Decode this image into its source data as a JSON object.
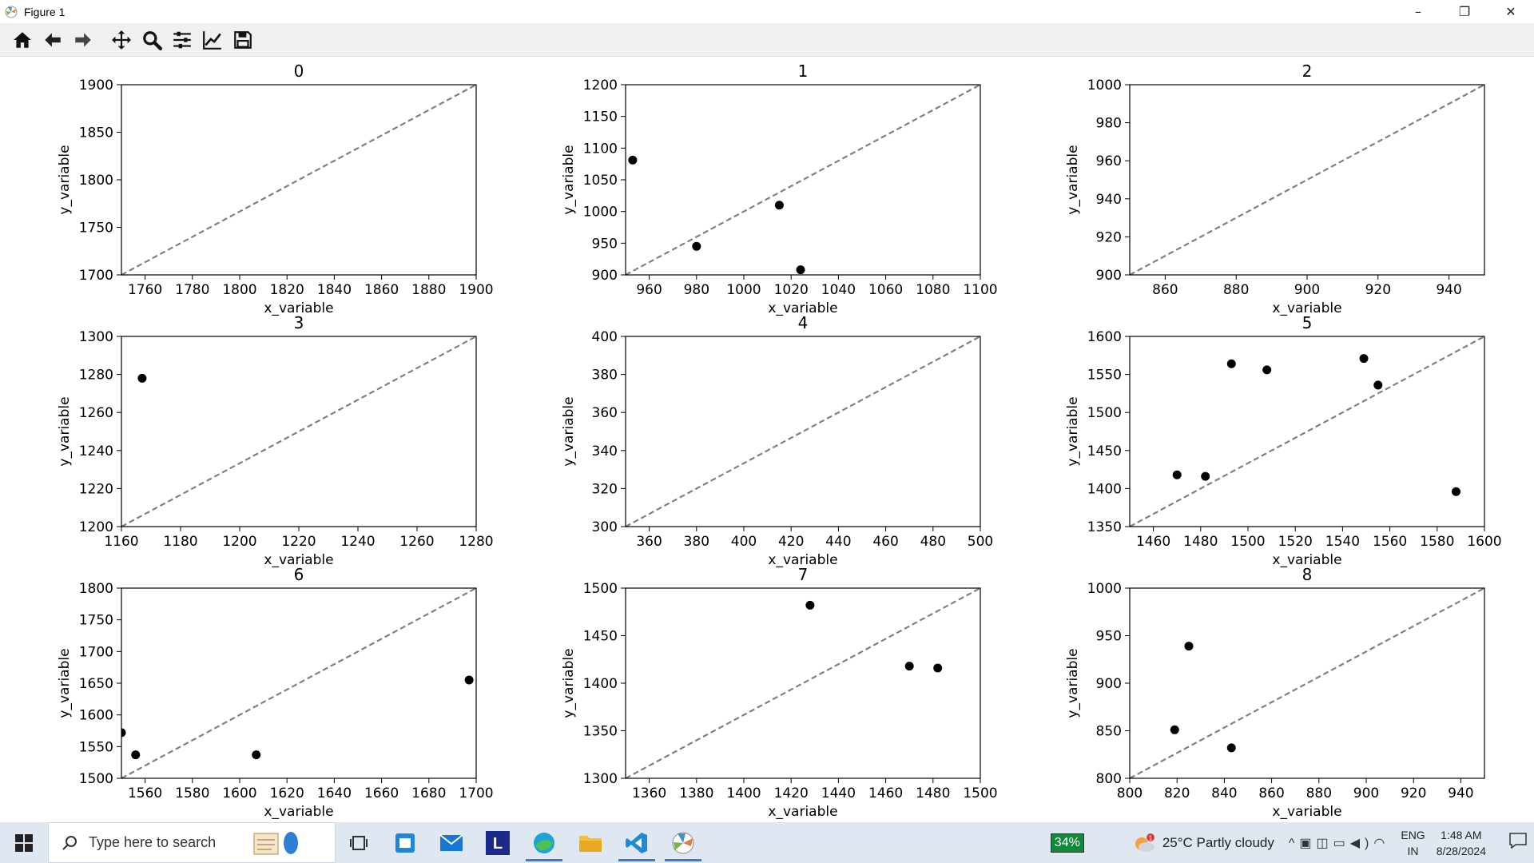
{
  "window": {
    "title": "Figure 1",
    "controls": {
      "minimize": "–",
      "restore": "❐",
      "close": "✕"
    }
  },
  "toolbar": {
    "tools": [
      "home-icon",
      "back-icon",
      "forward-icon",
      "pan-icon",
      "zoom-icon",
      "configure-subplots-icon",
      "edit-axis-icon",
      "save-icon"
    ]
  },
  "colors": {
    "dashed_line": "#808080",
    "point": "#000000",
    "axis": "#000000"
  },
  "chart_data": [
    {
      "type": "scatter",
      "title": "0",
      "xlabel": "x_variable",
      "ylabel": "y_variable",
      "xlim": [
        1750,
        1900
      ],
      "ylim": [
        1700,
        1900
      ],
      "xticks": [
        1760,
        1780,
        1800,
        1820,
        1840,
        1860,
        1880,
        1900
      ],
      "yticks": [
        1700,
        1750,
        1800,
        1850,
        1900
      ],
      "x": [],
      "y": []
    },
    {
      "type": "scatter",
      "title": "1",
      "xlabel": "x_variable",
      "ylabel": "y_variable",
      "xlim": [
        950,
        1100
      ],
      "ylim": [
        900,
        1200
      ],
      "xticks": [
        960,
        980,
        1000,
        1020,
        1040,
        1060,
        1080,
        1100
      ],
      "yticks": [
        900,
        950,
        1000,
        1050,
        1100,
        1150,
        1200
      ],
      "x": [
        953,
        980,
        1015,
        1024
      ],
      "y": [
        1081,
        945,
        1010,
        908
      ]
    },
    {
      "type": "scatter",
      "title": "2",
      "xlabel": "x_variable",
      "ylabel": "y_variable",
      "xlim": [
        850,
        950
      ],
      "ylim": [
        900,
        1000
      ],
      "xticks": [
        860,
        880,
        900,
        920,
        940
      ],
      "yticks": [
        900,
        920,
        940,
        960,
        980,
        1000
      ],
      "x": [],
      "y": []
    },
    {
      "type": "scatter",
      "title": "3",
      "xlabel": "x_variable",
      "ylabel": "y_variable",
      "xlim": [
        1160,
        1280
      ],
      "ylim": [
        1200,
        1300
      ],
      "xticks": [
        1160,
        1180,
        1200,
        1220,
        1240,
        1260,
        1280
      ],
      "yticks": [
        1200,
        1220,
        1240,
        1260,
        1280,
        1300
      ],
      "x": [
        1167
      ],
      "y": [
        1278
      ]
    },
    {
      "type": "scatter",
      "title": "4",
      "xlabel": "x_variable",
      "ylabel": "y_variable",
      "xlim": [
        350,
        500
      ],
      "ylim": [
        300,
        400
      ],
      "xticks": [
        360,
        380,
        400,
        420,
        440,
        460,
        480,
        500
      ],
      "yticks": [
        300,
        320,
        340,
        360,
        380,
        400
      ],
      "x": [],
      "y": []
    },
    {
      "type": "scatter",
      "title": "5",
      "xlabel": "x_variable",
      "ylabel": "y_variable",
      "xlim": [
        1450,
        1600
      ],
      "ylim": [
        1350,
        1600
      ],
      "xticks": [
        1460,
        1480,
        1500,
        1520,
        1540,
        1560,
        1580,
        1600
      ],
      "yticks": [
        1350,
        1400,
        1450,
        1500,
        1550,
        1600
      ],
      "x": [
        1470,
        1482,
        1493,
        1508,
        1549,
        1555,
        1588
      ],
      "y": [
        1418,
        1416,
        1564,
        1556,
        1571,
        1536,
        1396
      ]
    },
    {
      "type": "scatter",
      "title": "6",
      "xlabel": "x_variable",
      "ylabel": "y_variable",
      "xlim": [
        1550,
        1700
      ],
      "ylim": [
        1500,
        1800
      ],
      "xticks": [
        1560,
        1580,
        1600,
        1620,
        1640,
        1660,
        1680,
        1700
      ],
      "yticks": [
        1500,
        1550,
        1600,
        1650,
        1700,
        1750,
        1800
      ],
      "x": [
        1550,
        1556,
        1607,
        1697
      ],
      "y": [
        1572,
        1537,
        1537,
        1655
      ]
    },
    {
      "type": "scatter",
      "title": "7",
      "xlabel": "x_variable",
      "ylabel": "y_variable",
      "xlim": [
        1350,
        1500
      ],
      "ylim": [
        1300,
        1500
      ],
      "xticks": [
        1360,
        1380,
        1400,
        1420,
        1440,
        1460,
        1480,
        1500
      ],
      "yticks": [
        1300,
        1350,
        1400,
        1450,
        1500
      ],
      "x": [
        1428,
        1470,
        1482
      ],
      "y": [
        1482,
        1418,
        1416
      ]
    },
    {
      "type": "scatter",
      "title": "8",
      "xlabel": "x_variable",
      "ylabel": "y_variable",
      "xlim": [
        800,
        950
      ],
      "ylim": [
        800,
        1000
      ],
      "xticks": [
        800,
        820,
        840,
        860,
        880,
        900,
        920,
        940
      ],
      "yticks": [
        800,
        850,
        900,
        950,
        1000
      ],
      "x": [
        819,
        825,
        843
      ],
      "y": [
        851,
        939,
        832
      ]
    }
  ],
  "taskbar": {
    "search_placeholder": "Type here to search",
    "apps": [
      "notepad-icon",
      "task-view-icon",
      "store-icon",
      "mail-icon",
      "l-app-icon",
      "edge-icon",
      "file-explorer-icon",
      "vscode-icon",
      "matplotlib-icon"
    ],
    "l_app_letter": "L",
    "battery_badge": "34%",
    "weather_badge": "1",
    "weather": "25°C  Partly cloudy",
    "lang_line1": "ENG",
    "lang_line2": "IN",
    "time": "1:48 AM",
    "date": "8/28/2024"
  }
}
